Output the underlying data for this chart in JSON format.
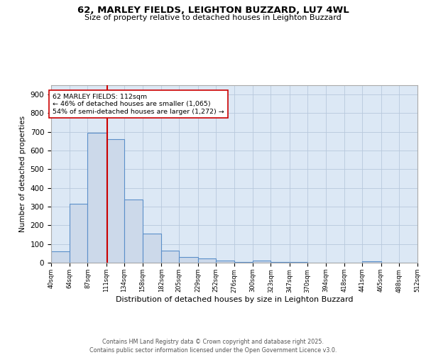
{
  "title1": "62, MARLEY FIELDS, LEIGHTON BUZZARD, LU7 4WL",
  "title2": "Size of property relative to detached houses in Leighton Buzzard",
  "xlabel": "Distribution of detached houses by size in Leighton Buzzard",
  "ylabel": "Number of detached properties",
  "bar_values": [
    60,
    315,
    695,
    660,
    340,
    155,
    65,
    30,
    22,
    12,
    5,
    10,
    5,
    3,
    0,
    0,
    0,
    8,
    0,
    0
  ],
  "bin_edges": [
    40,
    64,
    87,
    111,
    134,
    158,
    182,
    205,
    229,
    252,
    276,
    300,
    323,
    347,
    370,
    394,
    418,
    441,
    465,
    488,
    512
  ],
  "tick_labels": [
    "40sqm",
    "64sqm",
    "87sqm",
    "111sqm",
    "134sqm",
    "158sqm",
    "182sqm",
    "205sqm",
    "229sqm",
    "252sqm",
    "276sqm",
    "300sqm",
    "323sqm",
    "347sqm",
    "370sqm",
    "394sqm",
    "418sqm",
    "441sqm",
    "465sqm",
    "488sqm",
    "512sqm"
  ],
  "bar_facecolor": "#ccd9ea",
  "bar_edgecolor": "#5b8fc9",
  "grid_color": "#b8c8dc",
  "bg_color": "#dce8f5",
  "vline_x": 112,
  "vline_color": "#cc0000",
  "annotation_text": "62 MARLEY FIELDS: 112sqm\n← 46% of detached houses are smaller (1,065)\n54% of semi-detached houses are larger (1,272) →",
  "annotation_box_color": "#ffffff",
  "annotation_border_color": "#cc0000",
  "footer_text": "Contains HM Land Registry data © Crown copyright and database right 2025.\nContains public sector information licensed under the Open Government Licence v3.0.",
  "ylim": [
    0,
    950
  ],
  "yticks": [
    0,
    100,
    200,
    300,
    400,
    500,
    600,
    700,
    800,
    900
  ]
}
